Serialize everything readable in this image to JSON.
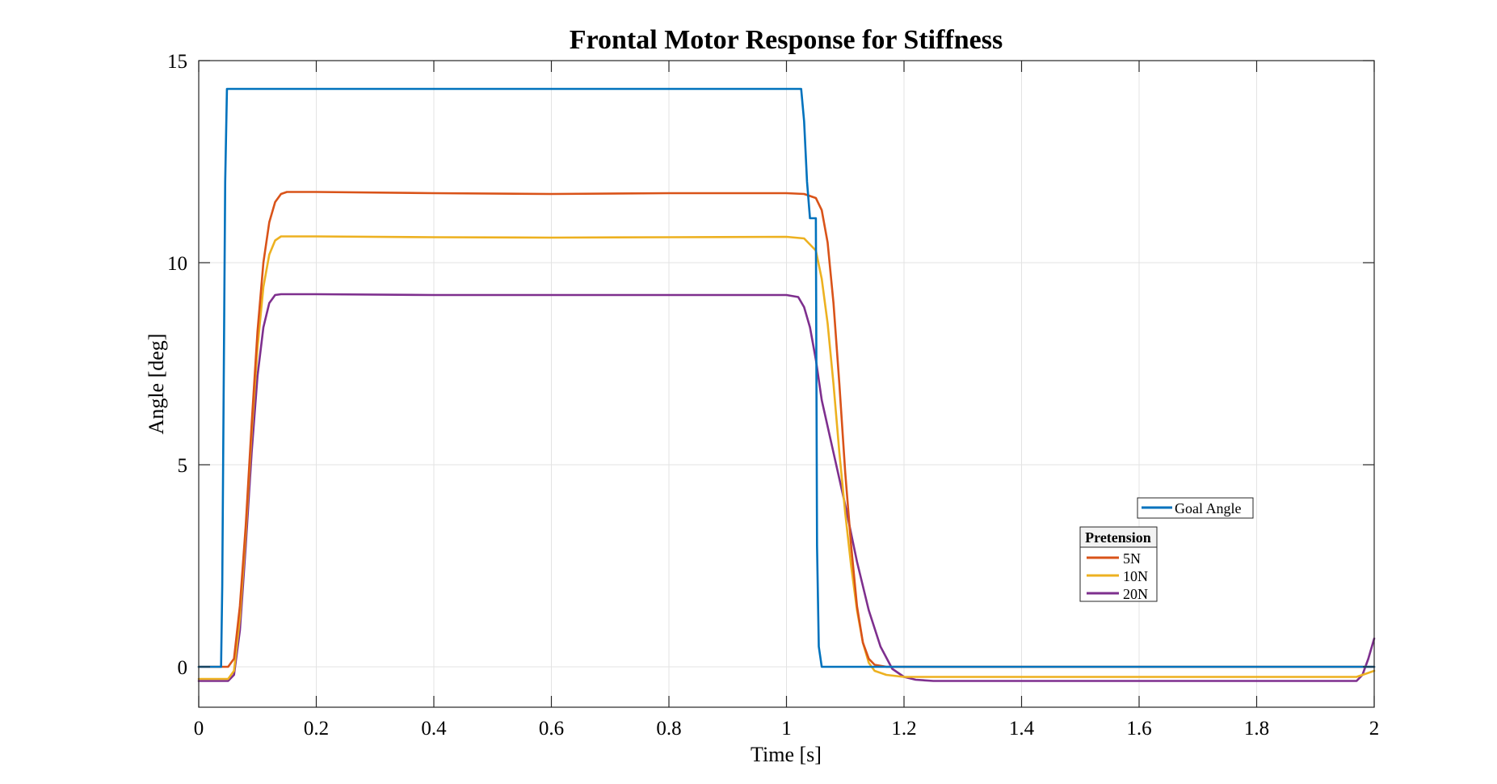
{
  "chart_data": {
    "type": "line",
    "title": "Frontal Motor Response for Stiffness",
    "xlabel": "Time [s]",
    "ylabel": "Angle [deg]",
    "xlim": [
      0,
      2
    ],
    "ylim": [
      -1,
      15
    ],
    "xticks": [
      0,
      0.2,
      0.4,
      0.6,
      0.8,
      1,
      1.2,
      1.4,
      1.6,
      1.8,
      2
    ],
    "xtick_labels": [
      "0",
      "0.2",
      "0.4",
      "0.6",
      "0.8",
      "1",
      "1.2",
      "1.4",
      "1.6",
      "1.8",
      "2"
    ],
    "yticks": [
      0,
      5,
      10,
      15
    ],
    "ytick_labels": [
      "0",
      "5",
      "10",
      "15"
    ],
    "grid": true,
    "legend_position": "center-right",
    "legend_group_title": "Pretension",
    "series": [
      {
        "name": "Goal Angle",
        "color": "#0072BD",
        "x": [
          0,
          0.038,
          0.04,
          0.045,
          0.048,
          0.05,
          1.025,
          1.03,
          1.035,
          1.04,
          1.045,
          1.05,
          1.052,
          1.055,
          1.06,
          2
        ],
        "y": [
          0,
          0,
          2.0,
          12.0,
          14.3,
          14.3,
          14.3,
          13.5,
          12.0,
          11.1,
          11.1,
          11.1,
          3.0,
          0.5,
          0,
          0
        ]
      },
      {
        "name": "5N",
        "color": "#D95319",
        "x": [
          0,
          0.05,
          0.06,
          0.07,
          0.08,
          0.09,
          0.1,
          0.11,
          0.12,
          0.13,
          0.14,
          0.15,
          0.2,
          0.4,
          0.6,
          0.8,
          1.0,
          1.03,
          1.05,
          1.06,
          1.07,
          1.08,
          1.09,
          1.1,
          1.11,
          1.12,
          1.13,
          1.14,
          1.15,
          1.17,
          1.2,
          1.3,
          1.5,
          1.7,
          1.9,
          2.0
        ],
        "y": [
          0,
          0,
          0.2,
          1.5,
          3.5,
          6.0,
          8.3,
          10.0,
          11.0,
          11.5,
          11.7,
          11.75,
          11.75,
          11.72,
          11.7,
          11.72,
          11.72,
          11.7,
          11.6,
          11.3,
          10.5,
          9.0,
          7.0,
          4.8,
          3.0,
          1.5,
          0.6,
          0.2,
          0.05,
          0,
          0,
          0,
          0,
          0,
          0,
          0
        ]
      },
      {
        "name": "10N",
        "color": "#EDB120",
        "x": [
          0,
          0.05,
          0.06,
          0.07,
          0.08,
          0.09,
          0.1,
          0.11,
          0.12,
          0.13,
          0.14,
          0.15,
          0.2,
          0.4,
          0.6,
          0.8,
          1.0,
          1.03,
          1.05,
          1.06,
          1.07,
          1.08,
          1.09,
          1.1,
          1.11,
          1.12,
          1.13,
          1.14,
          1.15,
          1.17,
          1.2,
          1.25,
          1.3,
          1.5,
          1.7,
          1.9,
          1.97,
          2.0
        ],
        "y": [
          -0.3,
          -0.3,
          -0.1,
          1.2,
          3.3,
          5.8,
          7.9,
          9.4,
          10.2,
          10.55,
          10.65,
          10.65,
          10.65,
          10.63,
          10.62,
          10.63,
          10.64,
          10.6,
          10.3,
          9.6,
          8.5,
          7.0,
          5.3,
          3.8,
          2.5,
          1.4,
          0.6,
          0.1,
          -0.1,
          -0.2,
          -0.25,
          -0.25,
          -0.25,
          -0.25,
          -0.25,
          -0.25,
          -0.25,
          -0.1
        ]
      },
      {
        "name": "20N",
        "color": "#7E2F8E",
        "x": [
          0,
          0.05,
          0.06,
          0.07,
          0.08,
          0.09,
          0.1,
          0.11,
          0.12,
          0.13,
          0.14,
          0.15,
          0.2,
          0.4,
          0.6,
          0.8,
          1.0,
          1.02,
          1.03,
          1.04,
          1.05,
          1.06,
          1.08,
          1.1,
          1.12,
          1.14,
          1.16,
          1.18,
          1.2,
          1.22,
          1.25,
          1.3,
          1.5,
          1.7,
          1.9,
          1.97,
          1.98,
          1.99,
          2.0
        ],
        "y": [
          -0.35,
          -0.35,
          -0.2,
          0.9,
          3.0,
          5.3,
          7.2,
          8.4,
          9.0,
          9.2,
          9.22,
          9.22,
          9.22,
          9.2,
          9.2,
          9.2,
          9.2,
          9.15,
          8.9,
          8.4,
          7.6,
          6.6,
          5.3,
          4.0,
          2.6,
          1.4,
          0.5,
          -0.05,
          -0.25,
          -0.32,
          -0.35,
          -0.35,
          -0.35,
          -0.35,
          -0.35,
          -0.35,
          -0.2,
          0.2,
          0.7
        ]
      }
    ]
  }
}
